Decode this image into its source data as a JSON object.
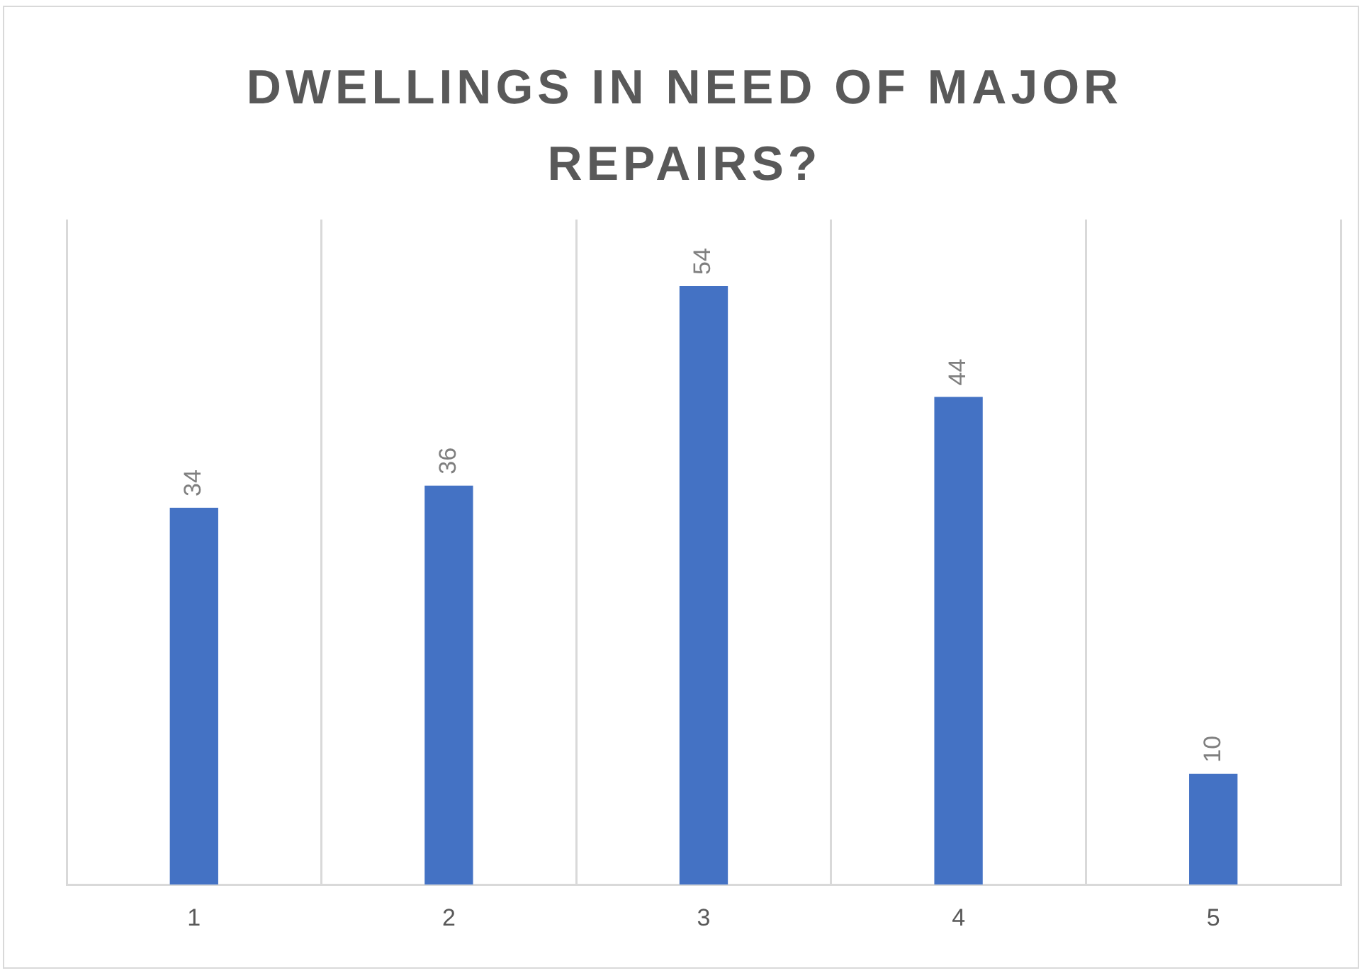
{
  "chart_data": {
    "type": "bar",
    "title": "DWELLINGS IN NEED OF MAJOR REPAIRS?",
    "categories": [
      "1",
      "2",
      "3",
      "4",
      "5"
    ],
    "values": [
      34,
      36,
      54,
      44,
      10
    ],
    "color": "#4472c4",
    "ylim": [
      0,
      60
    ],
    "grid": "x",
    "tick_labels": "x",
    "data_labels": true
  }
}
